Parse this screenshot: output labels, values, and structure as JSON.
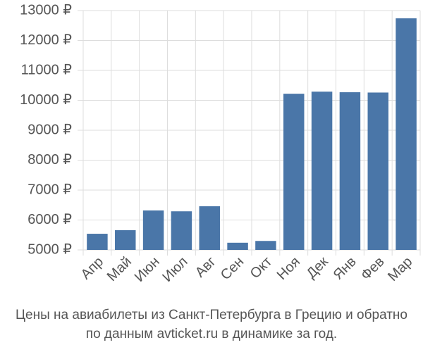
{
  "chart_data": {
    "type": "bar",
    "title": "Цены на авиабилеты из Санкт-Петербурга в Грецию и обратно",
    "subtitle": "по данным avticket.ru в динамике за год.",
    "categories": [
      "Апр",
      "Май",
      "Июн",
      "Июл",
      "Авг",
      "Сен",
      "Окт",
      "Ноя",
      "Дек",
      "Янв",
      "Фев",
      "Мар"
    ],
    "values": [
      5540,
      5660,
      6320,
      6290,
      6460,
      5240,
      5300,
      10220,
      10290,
      10270,
      10260,
      12740
    ],
    "color": "#4a76a8",
    "ylim": [
      5000,
      13000
    ],
    "yticks": [
      {
        "value": 5000,
        "label": "5000 ₽"
      },
      {
        "value": 6000,
        "label": "6000 ₽"
      },
      {
        "value": 7000,
        "label": "7000 ₽"
      },
      {
        "value": 8000,
        "label": "8000 ₽"
      },
      {
        "value": 9000,
        "label": "9000 ₽"
      },
      {
        "value": 10000,
        "label": "10000 ₽"
      },
      {
        "value": 11000,
        "label": "11000 ₽"
      },
      {
        "value": 12000,
        "label": "12000 ₽"
      },
      {
        "value": 13000,
        "label": "13000 ₽"
      }
    ],
    "grid": true
  }
}
